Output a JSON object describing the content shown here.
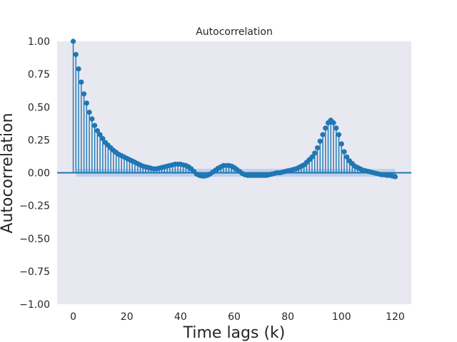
{
  "chart_data": {
    "type": "stem",
    "title": "Autocorrelation",
    "xlabel": "Time lags (k)",
    "ylabel": "Autocorrelation",
    "xlim": [
      -6,
      126
    ],
    "ylim": [
      -1.0,
      1.0
    ],
    "x_ticks": [
      0,
      20,
      40,
      60,
      80,
      100,
      120
    ],
    "y_ticks": [
      1.0,
      0.75,
      0.5,
      0.25,
      0.0,
      -0.25,
      -0.5,
      -0.75,
      -1.0
    ],
    "x_tick_labels": [
      "0",
      "20",
      "40",
      "60",
      "80",
      "100",
      "120"
    ],
    "y_tick_labels": [
      "1.00",
      "0.75",
      "0.50",
      "0.25",
      "0.00",
      "−0.25",
      "−0.50",
      "−0.75",
      "−1.00"
    ],
    "grid": false,
    "lags": [
      0,
      1,
      2,
      3,
      4,
      5,
      6,
      7,
      8,
      9,
      10,
      11,
      12,
      13,
      14,
      15,
      16,
      17,
      18,
      19,
      20,
      21,
      22,
      23,
      24,
      25,
      26,
      27,
      28,
      29,
      30,
      31,
      32,
      33,
      34,
      35,
      36,
      37,
      38,
      39,
      40,
      41,
      42,
      43,
      44,
      45,
      46,
      47,
      48,
      49,
      50,
      51,
      52,
      53,
      54,
      55,
      56,
      57,
      58,
      59,
      60,
      61,
      62,
      63,
      64,
      65,
      66,
      67,
      68,
      69,
      70,
      71,
      72,
      73,
      74,
      75,
      76,
      77,
      78,
      79,
      80,
      81,
      82,
      83,
      84,
      85,
      86,
      87,
      88,
      89,
      90,
      91,
      92,
      93,
      94,
      95,
      96,
      97,
      98,
      99,
      100,
      101,
      102,
      103,
      104,
      105,
      106,
      107,
      108,
      109,
      110,
      111,
      112,
      113,
      114,
      115,
      116,
      117,
      118,
      119,
      120
    ],
    "acf": [
      1.0,
      0.9,
      0.79,
      0.69,
      0.6,
      0.53,
      0.46,
      0.41,
      0.36,
      0.32,
      0.29,
      0.26,
      0.23,
      0.21,
      0.19,
      0.17,
      0.155,
      0.14,
      0.13,
      0.12,
      0.11,
      0.1,
      0.09,
      0.08,
      0.07,
      0.06,
      0.05,
      0.045,
      0.04,
      0.035,
      0.03,
      0.03,
      0.035,
      0.04,
      0.045,
      0.05,
      0.055,
      0.06,
      0.065,
      0.065,
      0.065,
      0.06,
      0.055,
      0.045,
      0.03,
      0.01,
      -0.01,
      -0.02,
      -0.025,
      -0.025,
      -0.02,
      -0.01,
      0.005,
      0.02,
      0.035,
      0.045,
      0.055,
      0.055,
      0.055,
      0.05,
      0.04,
      0.025,
      0.01,
      -0.005,
      -0.015,
      -0.02,
      -0.02,
      -0.02,
      -0.02,
      -0.02,
      -0.02,
      -0.02,
      -0.02,
      -0.015,
      -0.01,
      -0.005,
      0.0,
      0.0,
      0.005,
      0.01,
      0.015,
      0.02,
      0.025,
      0.03,
      0.04,
      0.05,
      0.06,
      0.08,
      0.1,
      0.12,
      0.15,
      0.19,
      0.24,
      0.29,
      0.34,
      0.38,
      0.4,
      0.38,
      0.34,
      0.29,
      0.22,
      0.16,
      0.12,
      0.09,
      0.07,
      0.05,
      0.04,
      0.03,
      0.02,
      0.015,
      0.01,
      0.005,
      0.0,
      -0.005,
      -0.01,
      -0.015,
      -0.015,
      -0.02,
      -0.02,
      -0.025,
      -0.03
    ],
    "confidence_band": 0.03,
    "colors": {
      "series": "#1f77b4",
      "band": "#aec7e8",
      "plot_background": "#e8e8f1",
      "text": "#262626"
    }
  }
}
